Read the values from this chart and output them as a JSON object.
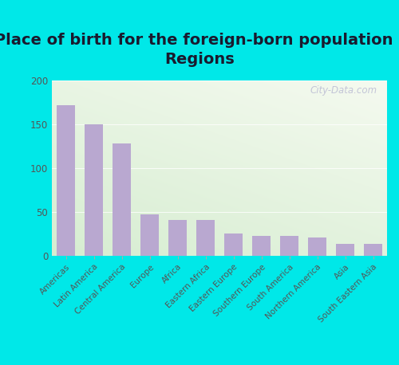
{
  "title": "Place of birth for the foreign-born population -\nRegions",
  "categories": [
    "Americas",
    "Latin America",
    "Central America",
    "Europe",
    "Africa",
    "Eastern Africa",
    "Eastern Europe",
    "Southern Europe",
    "South America",
    "Northern America",
    "Asia",
    "South Eastern Asia"
  ],
  "values": [
    172,
    150,
    128,
    47,
    41,
    41,
    25,
    22,
    22,
    21,
    13,
    13
  ],
  "bar_color": "#b9a8d0",
  "background_outer": "#00e8e8",
  "background_inner_light": "#f5faf0",
  "background_inner_dark": "#d8efd0",
  "ylabel_ticks": [
    0,
    50,
    100,
    150,
    200
  ],
  "ylim": [
    0,
    200
  ],
  "title_fontsize": 14,
  "tick_fontsize": 8.5,
  "watermark_text": "City-Data.com",
  "title_color": "#1a1a2e",
  "tick_color": "#555555"
}
